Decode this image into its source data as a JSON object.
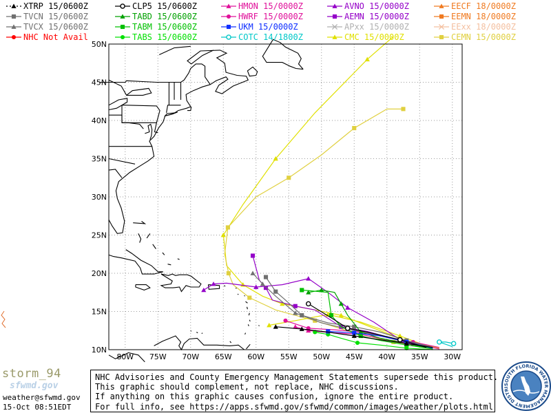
{
  "legend": [
    {
      "label": "XTRP",
      "time": "15/0600Z",
      "color": "#000000",
      "marker": "triangle",
      "dashed": true
    },
    {
      "label": "CLP5",
      "time": "15/0600Z",
      "color": "#000000",
      "marker": "circle-o"
    },
    {
      "label": "HMON",
      "time": "15/0000Z",
      "color": "#e0109a",
      "marker": "triangle"
    },
    {
      "label": "AVNO",
      "time": "15/0000Z",
      "color": "#9400c8",
      "marker": "triangle"
    },
    {
      "label": "EECF",
      "time": "18/0000Z",
      "color": "#f07a20",
      "marker": "triangle"
    },
    {
      "label": "TVCN",
      "time": "15/0600Z",
      "color": "#707070",
      "marker": "square"
    },
    {
      "label": "TABD",
      "time": "15/0600Z",
      "color": "#00a000",
      "marker": "triangle"
    },
    {
      "label": "HWRF",
      "time": "15/0000Z",
      "color": "#e0109a",
      "marker": "circle"
    },
    {
      "label": "AEMN",
      "time": "15/0000Z",
      "color": "#9400c8",
      "marker": "square"
    },
    {
      "label": "EEMN",
      "time": "18/0000Z",
      "color": "#f07a20",
      "marker": "square"
    },
    {
      "label": "TVCX",
      "time": "15/0600Z",
      "color": "#707070",
      "marker": "triangle"
    },
    {
      "label": "TABM",
      "time": "15/0600Z",
      "color": "#00c000",
      "marker": "square"
    },
    {
      "label": "UKM",
      "time": "15/0000Z",
      "color": "#1030ff",
      "marker": "square"
    },
    {
      "label": "APxx",
      "time": "15/0000Z",
      "color": "#b0b0b0",
      "marker": "x"
    },
    {
      "label": "EExx",
      "time": "18/0000Z",
      "color": "#f4c0a0",
      "marker": "x"
    },
    {
      "label": "NHC Not Avail",
      "time": "",
      "color": "#ff0000",
      "marker": "circle"
    },
    {
      "label": "TABS",
      "time": "15/0600Z",
      "color": "#00e000",
      "marker": "circle"
    },
    {
      "label": "COTC",
      "time": "14/1800Z",
      "color": "#00c8c8",
      "marker": "circle-o"
    },
    {
      "label": "CMC",
      "time": "15/0000Z",
      "color": "#e0e000",
      "marker": "triangle"
    },
    {
      "label": "CEMN",
      "time": "15/0000Z",
      "color": "#e0d040",
      "marker": "square"
    }
  ],
  "axes": {
    "lon_ticks": [
      "80W",
      "75W",
      "70W",
      "65W",
      "60W",
      "55W",
      "50W",
      "45W",
      "40W",
      "35W",
      "30W"
    ],
    "lat_ticks": [
      "50N",
      "45N",
      "40N",
      "35N",
      "30N",
      "25N",
      "20N",
      "15N",
      "10N"
    ],
    "lon_range": [
      -82.5,
      -28.5
    ],
    "lat_range": [
      10,
      50
    ]
  },
  "tracks": [
    {
      "model": "CMC",
      "color": "#e0e000",
      "marker": "triangle",
      "points": [
        [
          -32,
          10.2
        ],
        [
          -37,
          11.2
        ],
        [
          -42,
          12.8
        ],
        [
          -47,
          14.5
        ],
        [
          -51,
          15.2
        ],
        [
          -56,
          16.0
        ],
        [
          -59,
          17.0
        ],
        [
          -62,
          18.5
        ],
        [
          -64.5,
          21
        ],
        [
          -65,
          25
        ],
        [
          -62,
          29
        ],
        [
          -57,
          35
        ],
        [
          -51,
          41
        ],
        [
          -43,
          48
        ],
        [
          -39,
          51
        ]
      ]
    },
    {
      "model": "CEMN",
      "color": "#e0d040",
      "marker": "square",
      "points": [
        [
          -33,
          10.3
        ],
        [
          -39,
          11.0
        ],
        [
          -45,
          12.2
        ],
        [
          -51,
          13.8
        ],
        [
          -57,
          15.2
        ],
        [
          -61,
          16.8
        ],
        [
          -63.5,
          18.5
        ],
        [
          -64.2,
          20
        ],
        [
          -64.8,
          22.5
        ],
        [
          -64.3,
          26
        ],
        [
          -60,
          30
        ],
        [
          -55,
          32.5
        ],
        [
          -50,
          35.5
        ],
        [
          -45,
          39
        ],
        [
          -40,
          41.5
        ],
        [
          -37.5,
          41.5
        ]
      ]
    },
    {
      "model": "CMC-b",
      "color": "#e0e000",
      "marker": "triangle",
      "points": [
        [
          -33,
          10.2
        ],
        [
          -38,
          11.8
        ],
        [
          -44,
          13.6
        ],
        [
          -49,
          14.6
        ],
        [
          -54,
          13.8
        ],
        [
          -58,
          13.2
        ]
      ]
    },
    {
      "model": "HMON",
      "color": "#e0109a",
      "marker": "triangle",
      "points": [
        [
          -32,
          10.1
        ],
        [
          -36,
          10.8
        ],
        [
          -40,
          11.3
        ],
        [
          -44,
          12.0
        ],
        [
          -48,
          12.2
        ],
        [
          -52,
          12.5
        ],
        [
          -54,
          13.0
        ]
      ]
    },
    {
      "model": "HWRF",
      "color": "#e0109a",
      "marker": "circle",
      "points": [
        [
          -32,
          10.3
        ],
        [
          -36,
          11.0
        ],
        [
          -40,
          11.6
        ],
        [
          -44,
          12.3
        ],
        [
          -48,
          12.6
        ],
        [
          -52,
          12.8
        ],
        [
          -55.5,
          13.8
        ]
      ]
    },
    {
      "model": "AVNO",
      "color": "#9400c8",
      "marker": "triangle",
      "points": [
        [
          -33,
          10.2
        ],
        [
          -38,
          11.3
        ],
        [
          -42,
          13.6
        ],
        [
          -46,
          15.5
        ],
        [
          -49,
          17.5
        ],
        [
          -52,
          19.3
        ],
        [
          -56,
          18.5
        ],
        [
          -60,
          18.2
        ],
        [
          -64.5,
          18.7
        ],
        [
          -66.5,
          18.6
        ],
        [
          -68,
          17.8
        ]
      ]
    },
    {
      "model": "AEMN",
      "color": "#9400c8",
      "marker": "square",
      "points": [
        [
          -33,
          10.3
        ],
        [
          -38,
          11.2
        ],
        [
          -43,
          12.4
        ],
        [
          -47,
          13.0
        ],
        [
          -51,
          15.2
        ],
        [
          -54,
          15.7
        ],
        [
          -57.5,
          16.5
        ],
        [
          -58.5,
          18.1
        ],
        [
          -59.5,
          19.1
        ],
        [
          -60.5,
          22.3
        ]
      ]
    },
    {
      "model": "TVCN",
      "color": "#707070",
      "marker": "square",
      "points": [
        [
          -33,
          10.3
        ],
        [
          -37,
          11.2
        ],
        [
          -41,
          12.3
        ],
        [
          -45,
          13.0
        ],
        [
          -49,
          13.5
        ],
        [
          -53,
          14.5
        ],
        [
          -55.5,
          16.5
        ],
        [
          -57,
          17.6
        ],
        [
          -58.5,
          19.5
        ]
      ]
    },
    {
      "model": "TVCX",
      "color": "#707070",
      "marker": "triangle",
      "points": [
        [
          -33,
          10.3
        ],
        [
          -37,
          11.0
        ],
        [
          -42,
          12.0
        ],
        [
          -46,
          12.7
        ],
        [
          -50,
          13.5
        ],
        [
          -54,
          14.8
        ],
        [
          -57,
          17.0
        ],
        [
          -59,
          18.6
        ],
        [
          -60.5,
          20.0
        ]
      ]
    },
    {
      "model": "TABD",
      "color": "#00a000",
      "marker": "triangle",
      "points": [
        [
          -33,
          10.1
        ],
        [
          -37,
          10.8
        ],
        [
          -41,
          11.5
        ],
        [
          -44,
          12.3
        ],
        [
          -46,
          14.5
        ],
        [
          -47,
          16.0
        ],
        [
          -48,
          17.5
        ],
        [
          -50,
          17.8
        ],
        [
          -52,
          17.5
        ]
      ]
    },
    {
      "model": "TABM",
      "color": "#00c000",
      "marker": "square",
      "points": [
        [
          -33,
          10.1
        ],
        [
          -37,
          10.6
        ],
        [
          -41,
          11.2
        ],
        [
          -44,
          11.8
        ],
        [
          -47,
          13.0
        ],
        [
          -48.5,
          14.5
        ],
        [
          -49,
          17.5
        ],
        [
          -53,
          17.8
        ]
      ]
    },
    {
      "model": "TABS",
      "color": "#00e000",
      "marker": "circle",
      "points": [
        [
          -33,
          10.0
        ],
        [
          -37,
          10.2
        ],
        [
          -41,
          10.6
        ],
        [
          -44.5,
          10.9
        ],
        [
          -47,
          11.5
        ],
        [
          -49,
          12.0
        ],
        [
          -51,
          12.3
        ]
      ]
    },
    {
      "model": "UKM",
      "color": "#1030ff",
      "marker": "square",
      "points": [
        [
          -33,
          10.2
        ],
        [
          -37,
          11.0
        ],
        [
          -41,
          11.8
        ],
        [
          -45,
          12.2
        ],
        [
          -49,
          12.4
        ]
      ]
    },
    {
      "model": "CLP5",
      "color": "#000000",
      "marker": "circle-o",
      "points": [
        [
          -34,
          10.3
        ],
        [
          -38,
          11.3
        ],
        [
          -43,
          12.3
        ],
        [
          -46,
          12.8
        ],
        [
          -48,
          13.9
        ],
        [
          -52,
          16.0
        ]
      ]
    },
    {
      "model": "XTRP",
      "color": "#000000",
      "marker": "triangle",
      "points": [
        [
          -33,
          10.3
        ],
        [
          -37,
          10.8
        ],
        [
          -41,
          11.3
        ],
        [
          -45,
          11.8
        ],
        [
          -49,
          12.3
        ],
        [
          -53,
          12.7
        ],
        [
          -57,
          13.0
        ]
      ]
    },
    {
      "model": "COTC",
      "color": "#00c8c8",
      "marker": "circle-o",
      "points": [
        [
          -30,
          10.4
        ],
        [
          -32,
          11.0
        ],
        [
          -31,
          11.0
        ],
        [
          -29.8,
          10.8
        ]
      ]
    }
  ],
  "footer": {
    "brand": "storm_94",
    "site": "sfwmd.gov",
    "email": "weather@sfwmd.gov",
    "timestamp": "15-Oct 08:51EDT"
  },
  "disclaimer": [
    "NHC Advisories and County Emergency Management Statements supersede this product.",
    "This graphic should complement, not replace, NHC discussions.",
    "If anything on this graphic causes confusion, ignore the entire product.",
    "For full info, see  https://apps.sfwmd.gov/sfwmd/common/images/weather/plots.html"
  ],
  "seal": {
    "text": "SOUTH FLORIDA WATER MANAGEMENT DISTRICT",
    "color": "#1a4a8a"
  }
}
